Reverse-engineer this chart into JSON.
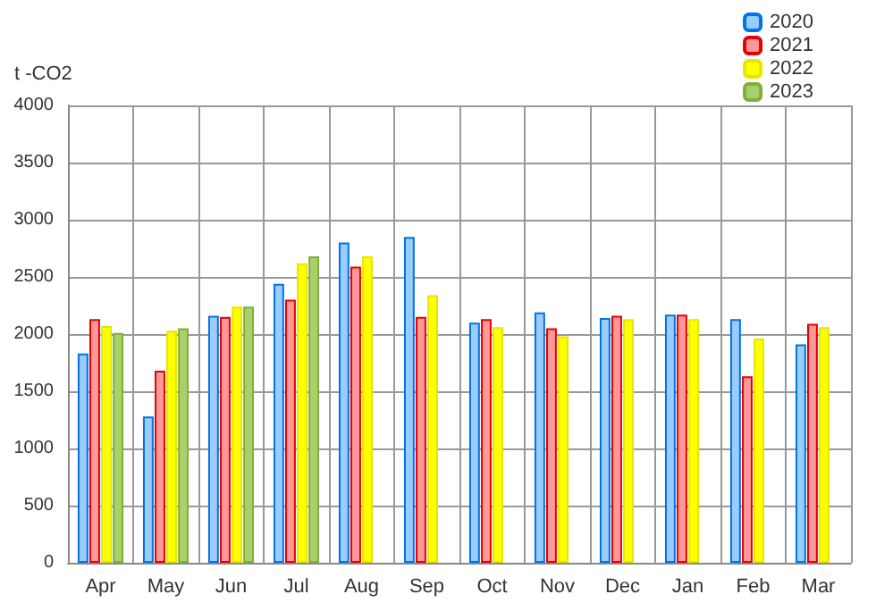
{
  "chart_data": {
    "type": "bar",
    "ylabel": "t -CO2",
    "categories": [
      "Apr",
      "May",
      "Jun",
      "Jul",
      "Aug",
      "Sep",
      "Oct",
      "Nov",
      "Dec",
      "Jan",
      "Feb",
      "Mar"
    ],
    "series": [
      {
        "name": "2020",
        "color": "#99ccff",
        "values": [
          1830,
          1280,
          2160,
          2440,
          2800,
          2850,
          2100,
          2190,
          2140,
          2170,
          2130,
          1910
        ]
      },
      {
        "name": "2021",
        "color": "#ff9999",
        "values": [
          2130,
          1680,
          2150,
          2300,
          2590,
          2150,
          2130,
          2050,
          2160,
          2170,
          1630,
          2090
        ]
      },
      {
        "name": "2022",
        "color": "#ffff00",
        "values": [
          2070,
          2030,
          2240,
          2620,
          2680,
          2340,
          2060,
          1980,
          2130,
          2130,
          1960,
          2060
        ]
      },
      {
        "name": "2023",
        "color": "#a9d16b",
        "values": [
          2010,
          2050,
          2240,
          2680,
          null,
          null,
          null,
          null,
          null,
          null,
          null,
          null
        ]
      }
    ],
    "ylim": [
      0,
      4000
    ],
    "yticks": [
      0,
      500,
      1000,
      1500,
      2000,
      2500,
      3000,
      3500,
      4000
    ],
    "grid": true,
    "legend": "top right"
  }
}
